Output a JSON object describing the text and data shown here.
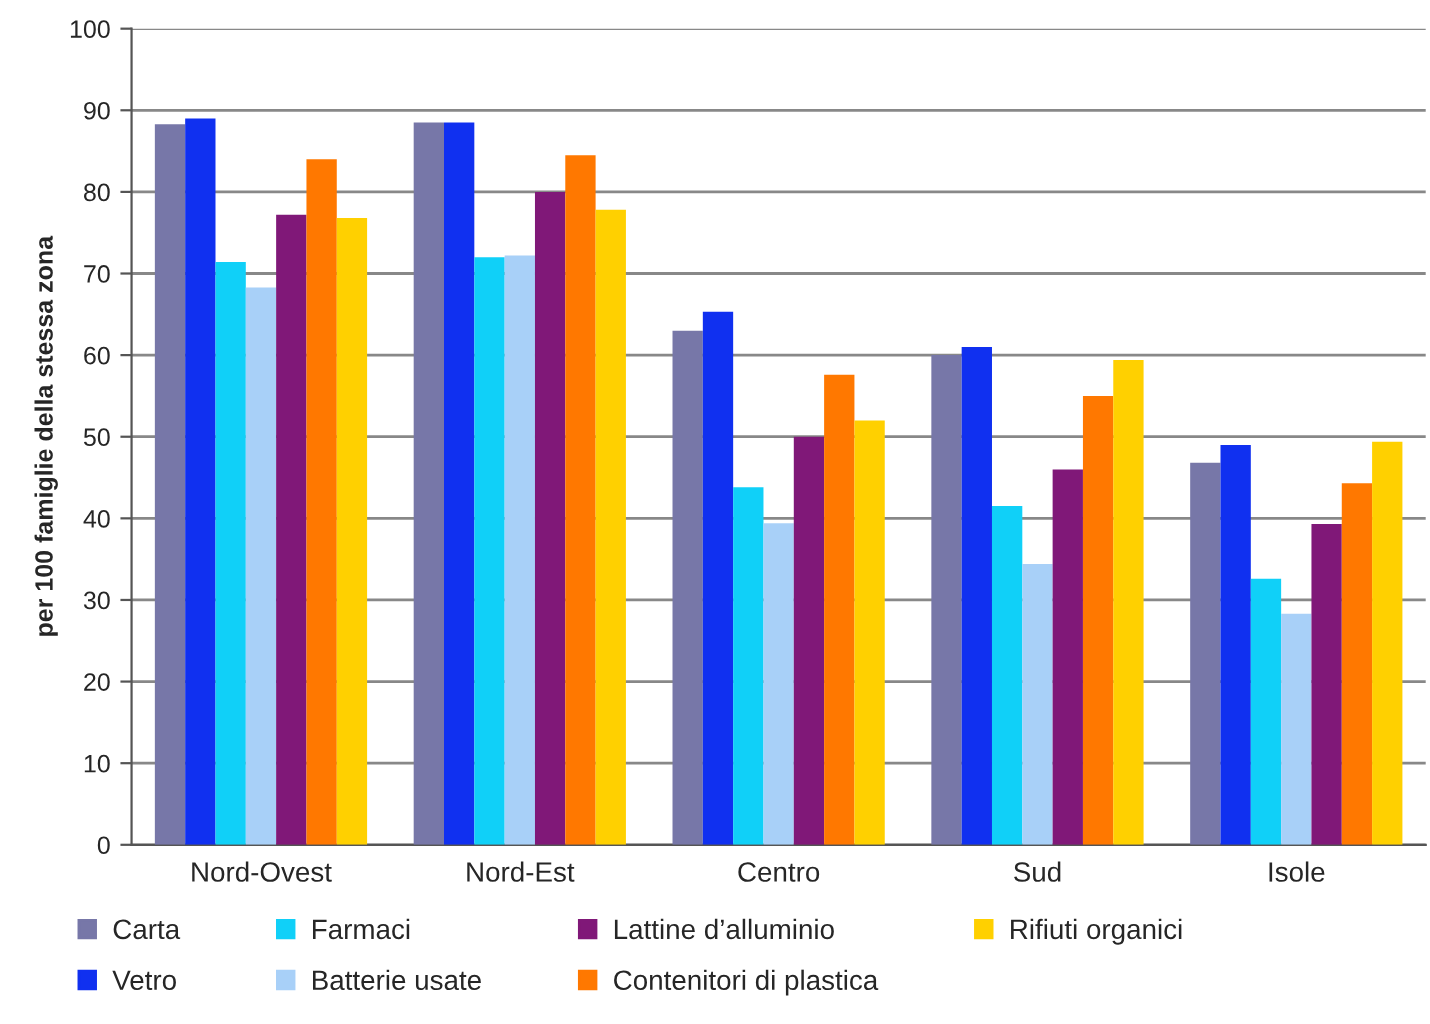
{
  "chart_data": {
    "type": "bar",
    "ylabel": "per 100 famiglie della stessa zona",
    "categories": [
      "Nord-Ovest",
      "Nord-Est",
      "Centro",
      "Sud",
      "Isole"
    ],
    "series": [
      {
        "name": "Carta",
        "color": "#7777a8",
        "values": [
          88.3,
          88.5,
          63,
          60,
          46.8
        ]
      },
      {
        "name": "Vetro",
        "color": "#1030f0",
        "values": [
          89,
          88.5,
          65.3,
          61,
          49
        ]
      },
      {
        "name": "Farmaci",
        "color": "#10d0f8",
        "values": [
          71.4,
          72,
          43.8,
          41.5,
          32.6
        ]
      },
      {
        "name": "Batterie usate",
        "color": "#a8d0f8",
        "values": [
          68.3,
          72.2,
          39.4,
          34.4,
          28.3
        ]
      },
      {
        "name": "Lattine d’alluminio",
        "color": "#801878",
        "values": [
          77.2,
          80,
          50,
          46,
          39.3
        ]
      },
      {
        "name": "Contenitori di plastica",
        "color": "#ff7800",
        "values": [
          84,
          84.5,
          57.6,
          55,
          44.3
        ]
      },
      {
        "name": "Rifiuti organici",
        "color": "#ffd000",
        "values": [
          76.8,
          77.8,
          52,
          59.4,
          49.4
        ]
      }
    ],
    "ylim": [
      0,
      100
    ],
    "yticks": [
      0,
      10,
      20,
      30,
      40,
      50,
      60,
      70,
      80,
      90,
      100
    ],
    "grid": "y",
    "legend": "bottom"
  }
}
